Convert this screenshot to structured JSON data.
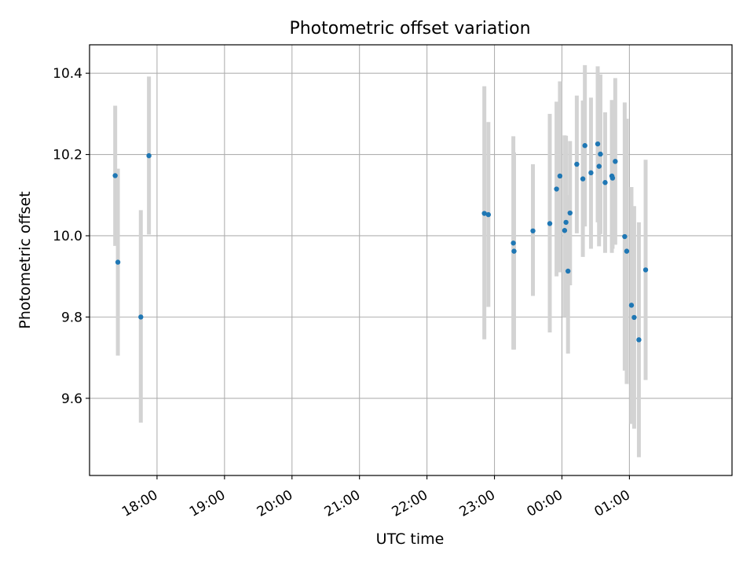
{
  "figure": {
    "title": "Photometric offset variation"
  },
  "chart_data": {
    "type": "scatter",
    "title": "Photometric offset variation",
    "xlabel": "UTC time",
    "ylabel": "Photometric offset",
    "x_unit": "hours since 17:00 UTC (values past 24 are after midnight)",
    "xlim": [
      0.0,
      9.52
    ],
    "ylim": [
      9.41,
      10.47
    ],
    "x_ticks": [
      {
        "value": 1,
        "label": "18:00"
      },
      {
        "value": 2,
        "label": "19:00"
      },
      {
        "value": 3,
        "label": "20:00"
      },
      {
        "value": 4,
        "label": "21:00"
      },
      {
        "value": 5,
        "label": "22:00"
      },
      {
        "value": 6,
        "label": "23:00"
      },
      {
        "value": 7,
        "label": "00:00"
      },
      {
        "value": 8,
        "label": "01:00"
      }
    ],
    "y_ticks": [
      {
        "value": 9.6,
        "label": "9.6"
      },
      {
        "value": 9.8,
        "label": "9.8"
      },
      {
        "value": 10.0,
        "label": "10.0"
      },
      {
        "value": 10.2,
        "label": "10.2"
      },
      {
        "value": 10.4,
        "label": "10.4"
      }
    ],
    "grid": true,
    "point_color": "#1f77b4",
    "errorbar_color": "#d3d3d3",
    "series": [
      {
        "points": [
          {
            "x": 0.38,
            "y": 10.148,
            "lo": 9.975,
            "hi": 10.32
          },
          {
            "x": 0.42,
            "y": 9.935,
            "lo": 9.705,
            "hi": 10.165
          },
          {
            "x": 0.76,
            "y": 9.8,
            "lo": 9.54,
            "hi": 10.063
          },
          {
            "x": 0.88,
            "y": 10.197,
            "lo": 10.003,
            "hi": 10.392
          },
          {
            "x": 5.85,
            "y": 10.055,
            "lo": 9.745,
            "hi": 10.368
          },
          {
            "x": 5.91,
            "y": 10.052,
            "lo": 9.825,
            "hi": 10.28
          },
          {
            "x": 6.28,
            "y": 9.982,
            "lo": 9.72,
            "hi": 10.245
          },
          {
            "x": 6.29,
            "y": 9.962,
            "lo": 9.72,
            "hi": 10.205
          },
          {
            "x": 6.57,
            "y": 10.012,
            "lo": 9.852,
            "hi": 10.176
          },
          {
            "x": 6.82,
            "y": 10.03,
            "lo": 9.762,
            "hi": 10.3
          },
          {
            "x": 6.92,
            "y": 10.115,
            "lo": 9.9,
            "hi": 10.33
          },
          {
            "x": 6.97,
            "y": 10.147,
            "lo": 9.91,
            "hi": 10.38
          },
          {
            "x": 7.04,
            "y": 10.013,
            "lo": 9.8,
            "hi": 10.247
          },
          {
            "x": 7.06,
            "y": 10.033,
            "lo": 9.82,
            "hi": 10.246
          },
          {
            "x": 7.09,
            "y": 9.913,
            "lo": 9.71,
            "hi": 10.1
          },
          {
            "x": 7.12,
            "y": 10.056,
            "lo": 9.878,
            "hi": 10.233
          },
          {
            "x": 7.22,
            "y": 10.176,
            "lo": 10.006,
            "hi": 10.345
          },
          {
            "x": 7.31,
            "y": 10.14,
            "lo": 9.948,
            "hi": 10.333
          },
          {
            "x": 7.34,
            "y": 10.222,
            "lo": 10.023,
            "hi": 10.42
          },
          {
            "x": 7.43,
            "y": 10.155,
            "lo": 9.968,
            "hi": 10.34
          },
          {
            "x": 7.53,
            "y": 10.226,
            "lo": 10.033,
            "hi": 10.417
          },
          {
            "x": 7.55,
            "y": 10.171,
            "lo": 9.974,
            "hi": 10.368
          },
          {
            "x": 7.57,
            "y": 10.201,
            "lo": 10.004,
            "hi": 10.397
          },
          {
            "x": 7.64,
            "y": 10.131,
            "lo": 9.958,
            "hi": 10.304
          },
          {
            "x": 7.74,
            "y": 10.147,
            "lo": 9.958,
            "hi": 10.334
          },
          {
            "x": 7.75,
            "y": 10.142,
            "lo": 9.968,
            "hi": 10.316
          },
          {
            "x": 7.79,
            "y": 10.183,
            "lo": 9.978,
            "hi": 10.388
          },
          {
            "x": 7.93,
            "y": 9.998,
            "lo": 9.668,
            "hi": 10.328
          },
          {
            "x": 7.96,
            "y": 9.962,
            "lo": 9.635,
            "hi": 10.288
          },
          {
            "x": 8.03,
            "y": 9.829,
            "lo": 9.537,
            "hi": 10.12
          },
          {
            "x": 8.07,
            "y": 9.799,
            "lo": 9.525,
            "hi": 10.073
          },
          {
            "x": 8.14,
            "y": 9.744,
            "lo": 9.455,
            "hi": 10.033
          },
          {
            "x": 8.24,
            "y": 9.916,
            "lo": 9.645,
            "hi": 10.187
          }
        ]
      }
    ]
  }
}
